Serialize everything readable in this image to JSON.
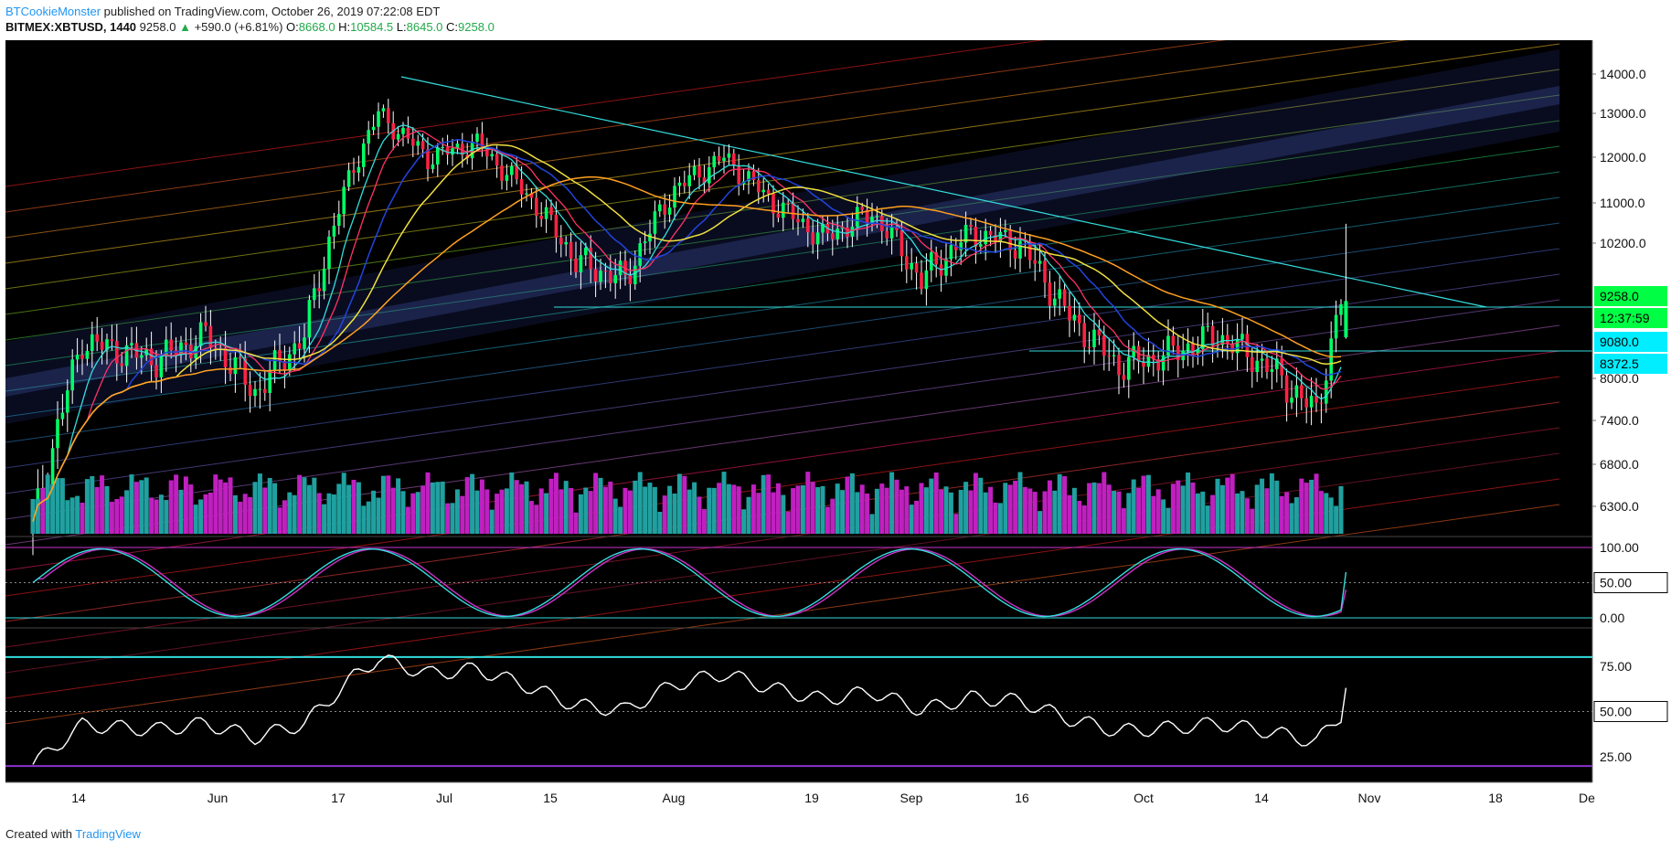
{
  "header": {
    "author": "BTCookieMonster",
    "published": "published on TradingView.com, October 26, 2019 07:22:08 EDT",
    "symbol": "BITMEX:XBTUSD, 1440",
    "last": "9258.0",
    "change_arrow": "▲",
    "change": "+590.0 (+6.81%)",
    "o_label": "O:",
    "o_val": "8668.0",
    "h_label": "H:",
    "h_val": "10584.5",
    "l_label": "L:",
    "l_val": "8645.0",
    "c_label": "C:",
    "c_val": "9258.0"
  },
  "footer": {
    "created_with": "Created with",
    "brand": "TradingView"
  },
  "colors": {
    "background": "#000000",
    "up": "#00ff66",
    "down": "#ff2244",
    "cyan": "#33dddd",
    "magenta": "#cc33cc",
    "yellow": "#f0e040",
    "orange": "#ffa020",
    "blue": "#2244dd",
    "pink": "#ff3366"
  },
  "chart_data": {
    "type": "candlestick",
    "x_tick_labels": [
      "14",
      "Jun",
      "17",
      "Jul",
      "15",
      "Aug",
      "19",
      "Sep",
      "16",
      "Oct",
      "14",
      "Nov",
      "18",
      "De"
    ],
    "price_axis": {
      "labels": [
        "14000.0",
        "13000.0",
        "12000.0",
        "11000.0",
        "10200.0",
        "9258.0",
        "9080.0",
        "8372.5",
        "8000.0",
        "7400.0",
        "6800.0",
        "6300.0"
      ],
      "current_price": "9258.0",
      "countdown": "12:37:59",
      "level_1": "9080.0",
      "level_2": "8372.5",
      "ticks": [
        14000,
        13000,
        12000,
        11000,
        10200,
        8000,
        7400,
        6800,
        6300
      ]
    },
    "stoch_rsi": {
      "labels": [
        "100.00",
        "50.00",
        "0.00"
      ],
      "ticks": [
        100,
        50,
        0
      ],
      "last_k": 65,
      "last_d": 40
    },
    "rsi": {
      "labels": [
        "75.00",
        "50.00",
        "25.00"
      ],
      "ticks": [
        75,
        50,
        25
      ],
      "upper": 80,
      "lower": 20,
      "last": 63
    },
    "series": [
      {
        "name": "price",
        "approx_path": [
          [
            0,
            6000
          ],
          [
            10,
            8600
          ],
          [
            25,
            8300
          ],
          [
            35,
            8700
          ],
          [
            45,
            7800
          ],
          [
            55,
            8700
          ],
          [
            65,
            11800
          ],
          [
            70,
            13000
          ],
          [
            80,
            12000
          ],
          [
            90,
            12300
          ],
          [
            100,
            11200
          ],
          [
            110,
            9900
          ],
          [
            120,
            9600
          ],
          [
            130,
            11300
          ],
          [
            140,
            12000
          ],
          [
            150,
            11000
          ],
          [
            160,
            10300
          ],
          [
            170,
            10800
          ],
          [
            180,
            9600
          ],
          [
            190,
            10400
          ],
          [
            200,
            10200
          ],
          [
            210,
            9000
          ],
          [
            220,
            8200
          ],
          [
            230,
            8400
          ],
          [
            240,
            8700
          ],
          [
            250,
            8200
          ],
          [
            260,
            7500
          ],
          [
            265,
            9258
          ]
        ]
      }
    ]
  }
}
